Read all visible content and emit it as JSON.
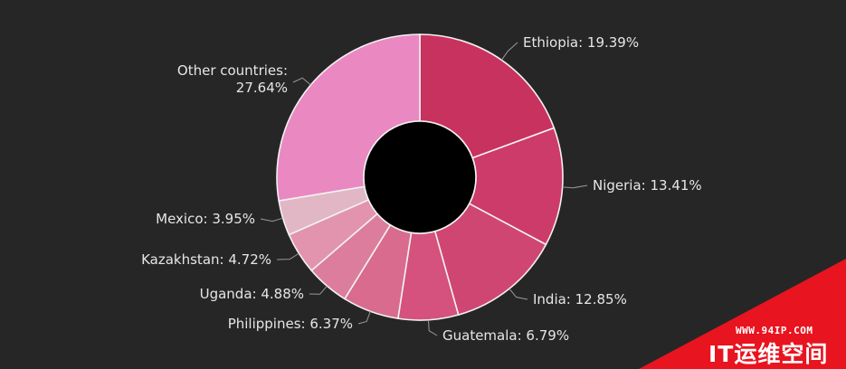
{
  "chart_data": {
    "type": "donut",
    "title": "",
    "unit": "%",
    "slices": [
      {
        "label": "Ethiopia",
        "value": 19.39,
        "color": "#c8325e",
        "display": "Ethiopia: 19.39%"
      },
      {
        "label": "Nigeria",
        "value": 13.41,
        "color": "#cc3b69",
        "display": "Nigeria: 13.41%"
      },
      {
        "label": "India",
        "value": 12.85,
        "color": "#d04672",
        "display": "India: 12.85%"
      },
      {
        "label": "Guatemala",
        "value": 6.79,
        "color": "#d4527d",
        "display": "Guatemala: 6.79%"
      },
      {
        "label": "Philippines",
        "value": 6.37,
        "color": "#d96b8f",
        "display": "Philippines: 6.37%"
      },
      {
        "label": "Uganda",
        "value": 4.88,
        "color": "#dd7d9d",
        "display": "Uganda: 4.88%"
      },
      {
        "label": "Kazakhstan",
        "value": 4.72,
        "color": "#e294ae",
        "display": "Kazakhstan: 4.72%"
      },
      {
        "label": "Mexico",
        "value": 3.95,
        "color": "#e1b7c5",
        "display": "Mexico: 3.95%"
      },
      {
        "label": "Other countries",
        "value": 27.64,
        "color": "#ea88c2",
        "display": [
          "Other countries:",
          "27.64%"
        ]
      }
    ]
  },
  "watermark": {
    "url": "WWW.94IP.COM",
    "name": "IT运维空间",
    "color": "#e8141f"
  }
}
